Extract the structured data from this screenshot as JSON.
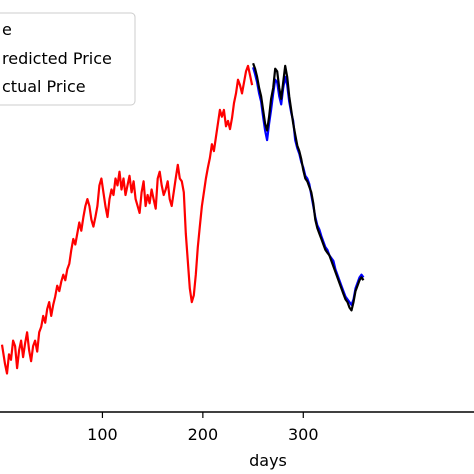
{
  "chart_data": {
    "type": "line",
    "xlabel": "days",
    "ylabel": "",
    "xticks": [
      100,
      200,
      300
    ],
    "xtick_labels": [
      "100",
      "200",
      "300"
    ],
    "legend": {
      "placement": "top-left",
      "entries": [
        {
          "label": "e",
          "color": "#000000"
        },
        {
          "label": "redicted Price",
          "color": "#0000ff"
        },
        {
          "label": "ctual Price",
          "color": "#000000"
        }
      ]
    },
    "series": [
      {
        "color": "#ff0000",
        "x": [
          0,
          3,
          5,
          7,
          9,
          11,
          13,
          15,
          17,
          19,
          21,
          23,
          25,
          27,
          29,
          31,
          33,
          35,
          37,
          39,
          41,
          43,
          45,
          47,
          49,
          51,
          53,
          55,
          57,
          59,
          61,
          63,
          65,
          67,
          69,
          71,
          73,
          75,
          77,
          79,
          81,
          83,
          85,
          87,
          89,
          91,
          93,
          95,
          97,
          99,
          101,
          103,
          105,
          107,
          109,
          111,
          113,
          115,
          117,
          119,
          121,
          123,
          125,
          127,
          129,
          131,
          133,
          135,
          137,
          139,
          141,
          143,
          145,
          147,
          149,
          151,
          153,
          155,
          157,
          159,
          161,
          163,
          165,
          167,
          169,
          171,
          173,
          175,
          177,
          179,
          181,
          183,
          185,
          187,
          189,
          191,
          193,
          195,
          197,
          199,
          201,
          203,
          205,
          207,
          209,
          211,
          213,
          215,
          217,
          219,
          221,
          223,
          225,
          227,
          229,
          231,
          233,
          235,
          237,
          239,
          241,
          243,
          245,
          247,
          249
        ],
        "y": [
          49,
          35,
          28,
          42,
          38,
          52,
          48,
          32,
          45,
          52,
          40,
          50,
          58,
          45,
          37,
          48,
          52,
          44,
          58,
          62,
          70,
          65,
          75,
          80,
          70,
          78,
          84,
          92,
          88,
          95,
          100,
          96,
          104,
          108,
          118,
          126,
          122,
          130,
          138,
          132,
          142,
          150,
          155,
          150,
          140,
          135,
          142,
          150,
          165,
          170,
          160,
          150,
          142,
          155,
          162,
          158,
          170,
          165,
          175,
          162,
          170,
          158,
          165,
          172,
          160,
          168,
          155,
          150,
          145,
          160,
          168,
          150,
          158,
          152,
          162,
          155,
          148,
          170,
          175,
          165,
          158,
          162,
          168,
          155,
          150,
          160,
          170,
          180,
          170,
          168,
          160,
          130,
          110,
          90,
          80,
          85,
          100,
          120,
          135,
          150,
          160,
          170,
          178,
          185,
          195,
          190,
          200,
          210,
          220,
          215,
          220,
          208,
          212,
          206,
          214,
          225,
          232,
          242,
          238,
          232,
          240,
          248,
          252,
          245,
          238
        ]
      },
      {
        "color": "#0000ff",
        "x": [
          250,
          252,
          254,
          256,
          258,
          260,
          262,
          264,
          266,
          268,
          270,
          272,
          274,
          276,
          278,
          280,
          282,
          284,
          286,
          288,
          290,
          292,
          294,
          296,
          298,
          300,
          302,
          304,
          306,
          308,
          310,
          312,
          314,
          316,
          318,
          320,
          322,
          324,
          326,
          328,
          330,
          332,
          334,
          336,
          338,
          340,
          342,
          344,
          346,
          348,
          350,
          352,
          354,
          356,
          358,
          360
        ],
        "y": [
          251,
          246,
          240,
          232,
          226,
          215,
          205,
          198,
          210,
          220,
          232,
          242,
          240,
          230,
          224,
          236,
          244,
          238,
          226,
          218,
          212,
          198,
          192,
          188,
          182,
          178,
          172,
          170,
          166,
          158,
          150,
          142,
          136,
          133,
          128,
          124,
          120,
          118,
          114,
          112,
          110,
          104,
          100,
          96,
          92,
          88,
          84,
          82,
          80,
          78,
          82,
          90,
          94,
          98,
          100,
          98
        ]
      },
      {
        "color": "#000000",
        "x": [
          250,
          252,
          254,
          256,
          258,
          260,
          262,
          264,
          266,
          268,
          270,
          272,
          274,
          276,
          278,
          280,
          282,
          284,
          286,
          288,
          290,
          292,
          294,
          296,
          298,
          300,
          302,
          304,
          306,
          308,
          310,
          312,
          314,
          316,
          318,
          320,
          322,
          324,
          326,
          328,
          330,
          332,
          334,
          336,
          338,
          340,
          342,
          344,
          346,
          348,
          350,
          352,
          354,
          356,
          358,
          360
        ],
        "y": [
          254,
          250,
          244,
          236,
          230,
          220,
          210,
          205,
          215,
          228,
          236,
          250,
          248,
          236,
          228,
          240,
          252,
          244,
          230,
          220,
          210,
          202,
          194,
          190,
          184,
          176,
          170,
          168,
          164,
          160,
          152,
          140,
          134,
          130,
          126,
          122,
          118,
          116,
          114,
          110,
          106,
          102,
          98,
          94,
          90,
          86,
          82,
          80,
          76,
          74,
          80,
          88,
          92,
          96,
          98,
          96
        ]
      }
    ],
    "xlim": [
      -2,
      470
    ],
    "ylim": [
      0,
      300
    ]
  }
}
